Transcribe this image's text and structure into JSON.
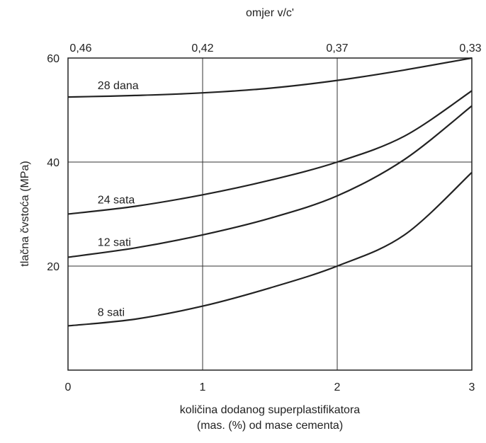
{
  "chart_data": {
    "type": "line",
    "xlabel_lines": [
      "količina dodanog superplastifikatora",
      "(mas. (%) od mase cementa)"
    ],
    "ylabel": "tlačna čvstoća (MPa)",
    "top_axis_label": "omjer  v/c'",
    "xlim": [
      0,
      3
    ],
    "ylim": [
      0,
      60
    ],
    "x_ticks": [
      {
        "value": 0,
        "label": "0"
      },
      {
        "value": 1,
        "label": "1"
      },
      {
        "value": 2,
        "label": "2"
      },
      {
        "value": 3,
        "label": "3"
      }
    ],
    "y_ticks": [
      {
        "value": 20,
        "label": "20"
      },
      {
        "value": 40,
        "label": "40"
      },
      {
        "value": 60,
        "label": "60"
      }
    ],
    "top_ticks": [
      {
        "value": 0,
        "label": "0,46"
      },
      {
        "value": 1,
        "label": "0,42"
      },
      {
        "value": 2,
        "label": "0,37"
      },
      {
        "value": 3,
        "label": "0,33"
      }
    ],
    "grid": true,
    "series": [
      {
        "name": "28  dana",
        "x": [
          0,
          0.5,
          1,
          1.5,
          2,
          2.5,
          3
        ],
        "y": [
          52.5,
          52.8,
          53.3,
          54.2,
          55.7,
          57.7,
          60.0
        ]
      },
      {
        "name": "24  sata",
        "x": [
          0,
          0.5,
          1,
          1.5,
          2,
          2.5,
          3
        ],
        "y": [
          30.0,
          31.5,
          33.7,
          36.5,
          40.0,
          45.0,
          53.7
        ]
      },
      {
        "name": "12  sati",
        "x": [
          0,
          0.5,
          1,
          1.5,
          2,
          2.5,
          3
        ],
        "y": [
          21.7,
          23.5,
          26.0,
          29.2,
          33.5,
          40.5,
          50.8
        ]
      },
      {
        "name": "8  sati",
        "x": [
          0,
          0.5,
          1,
          1.5,
          2,
          2.5,
          3
        ],
        "y": [
          8.5,
          9.8,
          12.3,
          15.8,
          20.0,
          26.0,
          38.0
        ]
      }
    ]
  }
}
